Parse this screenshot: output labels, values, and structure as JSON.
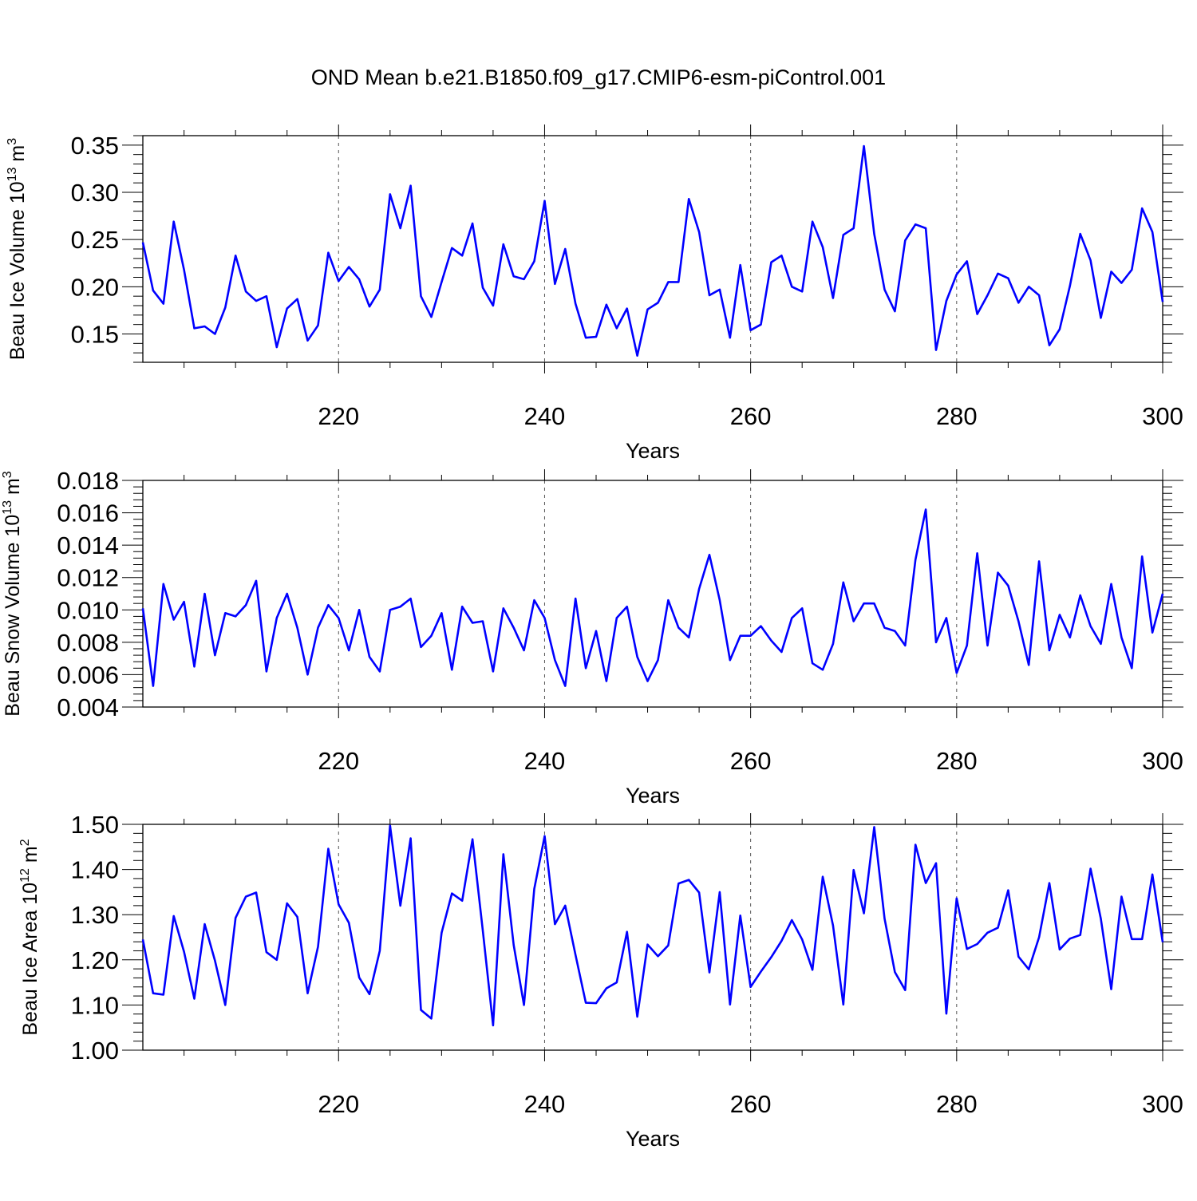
{
  "figure": {
    "title": "OND Mean b.e21.B1850.f09_g17.CMIP6-esm-piControl.001",
    "line_color": "#0000ff"
  },
  "chart_data": [
    {
      "type": "line",
      "title": "",
      "xlabel": "Years",
      "ylabel": "Beau Ice Volume 10^13 m^3",
      "ylabel_parts": [
        "Beau Ice Volume 10",
        "13",
        " m",
        "3"
      ],
      "xlim": [
        201,
        300
      ],
      "ylim": [
        0.12,
        0.36
      ],
      "xticks": [
        220,
        240,
        260,
        280,
        300
      ],
      "yticks": [
        0.15,
        0.2,
        0.25,
        0.3,
        0.35
      ],
      "ytick_labels": [
        "0.15",
        "0.20",
        "0.25",
        "0.30",
        "0.35"
      ],
      "grid": "dashed vertical at major x ticks",
      "x_start": 201,
      "values": [
        0.247,
        0.196,
        0.182,
        0.269,
        0.218,
        0.156,
        0.158,
        0.15,
        0.178,
        0.233,
        0.195,
        0.185,
        0.19,
        0.136,
        0.177,
        0.187,
        0.143,
        0.159,
        0.236,
        0.206,
        0.221,
        0.208,
        0.179,
        0.197,
        0.298,
        0.262,
        0.307,
        0.19,
        0.168,
        0.205,
        0.241,
        0.233,
        0.267,
        0.199,
        0.18,
        0.245,
        0.211,
        0.208,
        0.227,
        0.291,
        0.203,
        0.24,
        0.182,
        0.146,
        0.147,
        0.181,
        0.156,
        0.177,
        0.127,
        0.176,
        0.183,
        0.205,
        0.205,
        0.293,
        0.258,
        0.191,
        0.197,
        0.146,
        0.223,
        0.154,
        0.16,
        0.226,
        0.233,
        0.2,
        0.195,
        0.269,
        0.242,
        0.188,
        0.255,
        0.262,
        0.349,
        0.256,
        0.197,
        0.174,
        0.249,
        0.266,
        0.262,
        0.133,
        0.185,
        0.213,
        0.227,
        0.171,
        0.191,
        0.214,
        0.209,
        0.183,
        0.2,
        0.191,
        0.138,
        0.155,
        0.201,
        0.256,
        0.228,
        0.167,
        0.216,
        0.204,
        0.218,
        0.283,
        0.258,
        0.184
      ]
    },
    {
      "type": "line",
      "title": "",
      "xlabel": "Years",
      "ylabel": "Beau Snow Volume 10^13 m^3",
      "ylabel_parts": [
        "Beau Snow Volume 10",
        "13",
        " m",
        "3"
      ],
      "xlim": [
        201,
        300
      ],
      "ylim": [
        0.004,
        0.018
      ],
      "xticks": [
        220,
        240,
        260,
        280,
        300
      ],
      "yticks": [
        0.004,
        0.006,
        0.008,
        0.01,
        0.012,
        0.014,
        0.016,
        0.018
      ],
      "ytick_labels": [
        "0.004",
        "0.006",
        "0.008",
        "0.010",
        "0.012",
        "0.014",
        "0.016",
        "0.018"
      ],
      "grid": "dashed vertical at major x ticks",
      "x_start": 201,
      "values": [
        0.0101,
        0.0053,
        0.0116,
        0.0094,
        0.0105,
        0.0065,
        0.011,
        0.0072,
        0.0098,
        0.0096,
        0.0103,
        0.0118,
        0.0062,
        0.0095,
        0.011,
        0.0089,
        0.006,
        0.0089,
        0.0103,
        0.0095,
        0.0075,
        0.01,
        0.0071,
        0.0062,
        0.01,
        0.0102,
        0.0107,
        0.0077,
        0.0084,
        0.0098,
        0.0063,
        0.0102,
        0.0092,
        0.0093,
        0.0062,
        0.0101,
        0.0089,
        0.0075,
        0.0106,
        0.0095,
        0.0069,
        0.0053,
        0.0107,
        0.0064,
        0.0087,
        0.0056,
        0.0095,
        0.0102,
        0.0071,
        0.0056,
        0.0069,
        0.0106,
        0.0089,
        0.0083,
        0.0113,
        0.0134,
        0.0106,
        0.0069,
        0.0084,
        0.0084,
        0.009,
        0.0081,
        0.0074,
        0.0095,
        0.0101,
        0.0067,
        0.0063,
        0.0079,
        0.0117,
        0.0093,
        0.0104,
        0.0104,
        0.0089,
        0.0087,
        0.0078,
        0.0131,
        0.0162,
        0.008,
        0.0095,
        0.0061,
        0.0078,
        0.0135,
        0.0078,
        0.0123,
        0.0115,
        0.0093,
        0.0066,
        0.013,
        0.0075,
        0.0097,
        0.0083,
        0.0109,
        0.009,
        0.0079,
        0.0116,
        0.0083,
        0.0064,
        0.0133,
        0.0086,
        0.011
      ]
    },
    {
      "type": "line",
      "title": "",
      "xlabel": "Years",
      "ylabel": "Beau Ice Area 10^12 m^2",
      "ylabel_parts": [
        "Beau Ice Area 10",
        "12",
        " m",
        "2"
      ],
      "xlim": [
        201,
        300
      ],
      "ylim": [
        1.0,
        1.5
      ],
      "xticks": [
        220,
        240,
        260,
        280,
        300
      ],
      "yticks": [
        1.0,
        1.1,
        1.2,
        1.3,
        1.4,
        1.5
      ],
      "ytick_labels": [
        "1.00",
        "1.10",
        "1.20",
        "1.30",
        "1.40",
        "1.50"
      ],
      "grid": "dashed vertical at major x ticks",
      "x_start": 201,
      "values": [
        1.245,
        1.126,
        1.123,
        1.297,
        1.218,
        1.114,
        1.279,
        1.198,
        1.1,
        1.293,
        1.34,
        1.349,
        1.217,
        1.2,
        1.325,
        1.295,
        1.126,
        1.229,
        1.446,
        1.323,
        1.282,
        1.161,
        1.124,
        1.22,
        1.497,
        1.32,
        1.469,
        1.089,
        1.07,
        1.26,
        1.347,
        1.331,
        1.467,
        1.265,
        1.055,
        1.434,
        1.233,
        1.1,
        1.357,
        1.474,
        1.279,
        1.32,
        1.211,
        1.105,
        1.104,
        1.137,
        1.15,
        1.262,
        1.074,
        1.234,
        1.208,
        1.232,
        1.369,
        1.377,
        1.349,
        1.172,
        1.35,
        1.101,
        1.298,
        1.14,
        1.174,
        1.206,
        1.242,
        1.288,
        1.245,
        1.178,
        1.384,
        1.276,
        1.101,
        1.399,
        1.303,
        1.494,
        1.291,
        1.173,
        1.133,
        1.455,
        1.37,
        1.414,
        1.081,
        1.336,
        1.224,
        1.235,
        1.26,
        1.271,
        1.354,
        1.207,
        1.179,
        1.25,
        1.37,
        1.223,
        1.247,
        1.255,
        1.402,
        1.291,
        1.135,
        1.34,
        1.246,
        1.246,
        1.389,
        1.239
      ]
    }
  ]
}
